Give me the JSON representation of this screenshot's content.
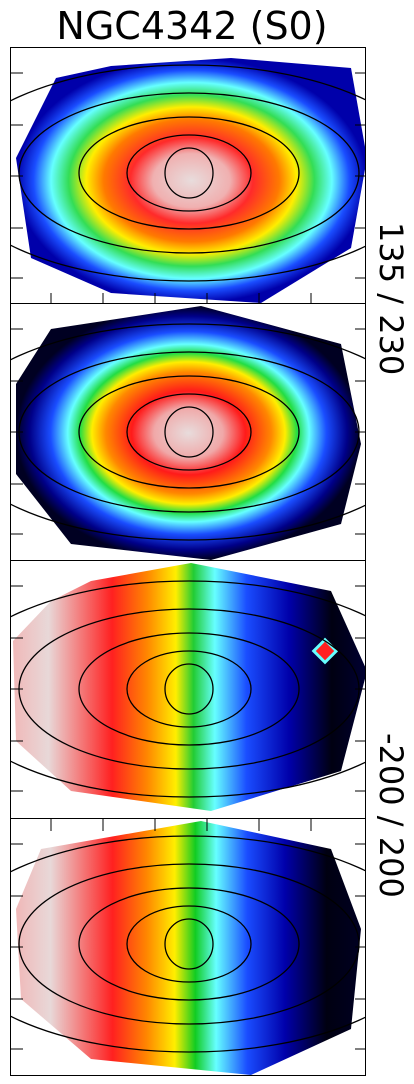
{
  "title": "NGC4342 (S0)",
  "side_labels": {
    "dispersion_range": "135 / 230",
    "velocity_range": "-200 / 200"
  },
  "panels": [
    {
      "name": "sigma-observed",
      "colormap": "dispersion"
    },
    {
      "name": "sigma-model",
      "colormap": "dispersion"
    },
    {
      "name": "velocity-observed",
      "colormap": "velocity"
    },
    {
      "name": "velocity-model",
      "colormap": "velocity"
    }
  ],
  "colors": {
    "low": "#000033",
    "blue": "#0000cc",
    "cyan": "#66ffff",
    "green": "#22dd44",
    "yellow": "#ffff00",
    "orange": "#ff9900",
    "red": "#ff1a1a",
    "high": "#e6d8d8"
  }
}
